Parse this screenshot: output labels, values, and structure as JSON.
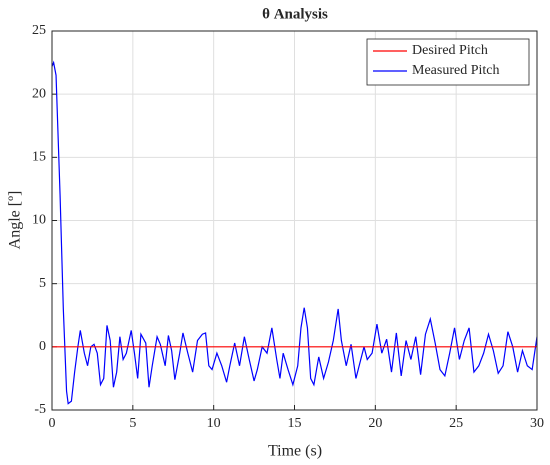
{
  "chart_data": {
    "type": "line",
    "title": "θ Analysis",
    "xlabel": "Time (s)",
    "ylabel": "Angle [º]",
    "xlim": [
      0,
      30
    ],
    "ylim": [
      -5,
      25
    ],
    "xticks": [
      0,
      5,
      10,
      15,
      20,
      25,
      30
    ],
    "yticks": [
      -5,
      0,
      5,
      10,
      15,
      20,
      25
    ],
    "grid": true,
    "legend": "top-right",
    "series": [
      {
        "name": "Desired Pitch",
        "color": "#ff0000",
        "x": [
          0,
          30
        ],
        "values": [
          0,
          0
        ]
      },
      {
        "name": "Measured Pitch",
        "color": "#0000ff",
        "x": [
          0,
          0.1,
          0.25,
          0.5,
          0.7,
          0.9,
          1.0,
          1.2,
          1.4,
          1.6,
          1.75,
          2.0,
          2.2,
          2.4,
          2.6,
          2.8,
          3.0,
          3.2,
          3.4,
          3.6,
          3.8,
          4.0,
          4.2,
          4.4,
          4.6,
          4.9,
          5.1,
          5.3,
          5.5,
          5.8,
          6.0,
          6.2,
          6.5,
          6.7,
          7.0,
          7.2,
          7.4,
          7.6,
          7.9,
          8.1,
          8.4,
          8.7,
          9.0,
          9.3,
          9.5,
          9.7,
          9.9,
          10.2,
          10.5,
          10.8,
          11.0,
          11.3,
          11.6,
          11.9,
          12.2,
          12.5,
          12.7,
          13.0,
          13.3,
          13.6,
          13.9,
          14.1,
          14.3,
          14.6,
          14.9,
          15.2,
          15.4,
          15.6,
          15.8,
          16.0,
          16.2,
          16.5,
          16.8,
          17.1,
          17.4,
          17.7,
          17.9,
          18.2,
          18.5,
          18.8,
          19.0,
          19.3,
          19.5,
          19.8,
          20.1,
          20.4,
          20.7,
          21.0,
          21.3,
          21.6,
          21.9,
          22.2,
          22.5,
          22.8,
          23.1,
          23.4,
          23.7,
          24.0,
          24.3,
          24.6,
          24.9,
          25.2,
          25.5,
          25.8,
          26.1,
          26.4,
          26.7,
          27.0,
          27.3,
          27.6,
          27.9,
          28.2,
          28.5,
          28.8,
          29.1,
          29.4,
          29.7,
          30.0
        ],
        "values": [
          22.2,
          22.5,
          21.5,
          12,
          3,
          -3.5,
          -4.5,
          -4.3,
          -2,
          0,
          1.3,
          -0.5,
          -1.5,
          0,
          0.2,
          -0.5,
          -3,
          -2.5,
          1.7,
          0.5,
          -3.2,
          -2,
          0.8,
          -1,
          -0.5,
          1.3,
          -0.5,
          -2.5,
          1.0,
          0.3,
          -3.2,
          -1.5,
          0.8,
          0.2,
          -1.5,
          0.9,
          -0.3,
          -2.6,
          -0.5,
          1.1,
          -0.5,
          -2.0,
          0.5,
          1.0,
          1.1,
          -1.5,
          -1.8,
          -0.5,
          -1.5,
          -2.8,
          -1.5,
          0.3,
          -1.5,
          0.8,
          -1.0,
          -2.7,
          -1.8,
          0,
          -0.5,
          1.5,
          -1.0,
          -2.5,
          -0.5,
          -1.8,
          -3.0,
          -1.5,
          1.5,
          3.1,
          1.5,
          -2.5,
          -3.0,
          -0.8,
          -2.5,
          -1.2,
          0.5,
          3.0,
          0.5,
          -1.5,
          0.2,
          -2.5,
          -1.5,
          0,
          -1,
          -0.5,
          1.8,
          -0.5,
          0.6,
          -2.0,
          1.1,
          -2.3,
          0.5,
          -1.0,
          0.8,
          -2.2,
          1.0,
          2.2,
          0.3,
          -1.8,
          -2.3,
          -0.5,
          1.5,
          -1.0,
          0.5,
          1.5,
          -2.0,
          -1.5,
          -0.5,
          1.0,
          -0.3,
          -2.1,
          -1.5,
          1.2,
          0,
          -2.0,
          -0.3,
          -1.5,
          -1.8,
          0.8
        ]
      }
    ]
  }
}
